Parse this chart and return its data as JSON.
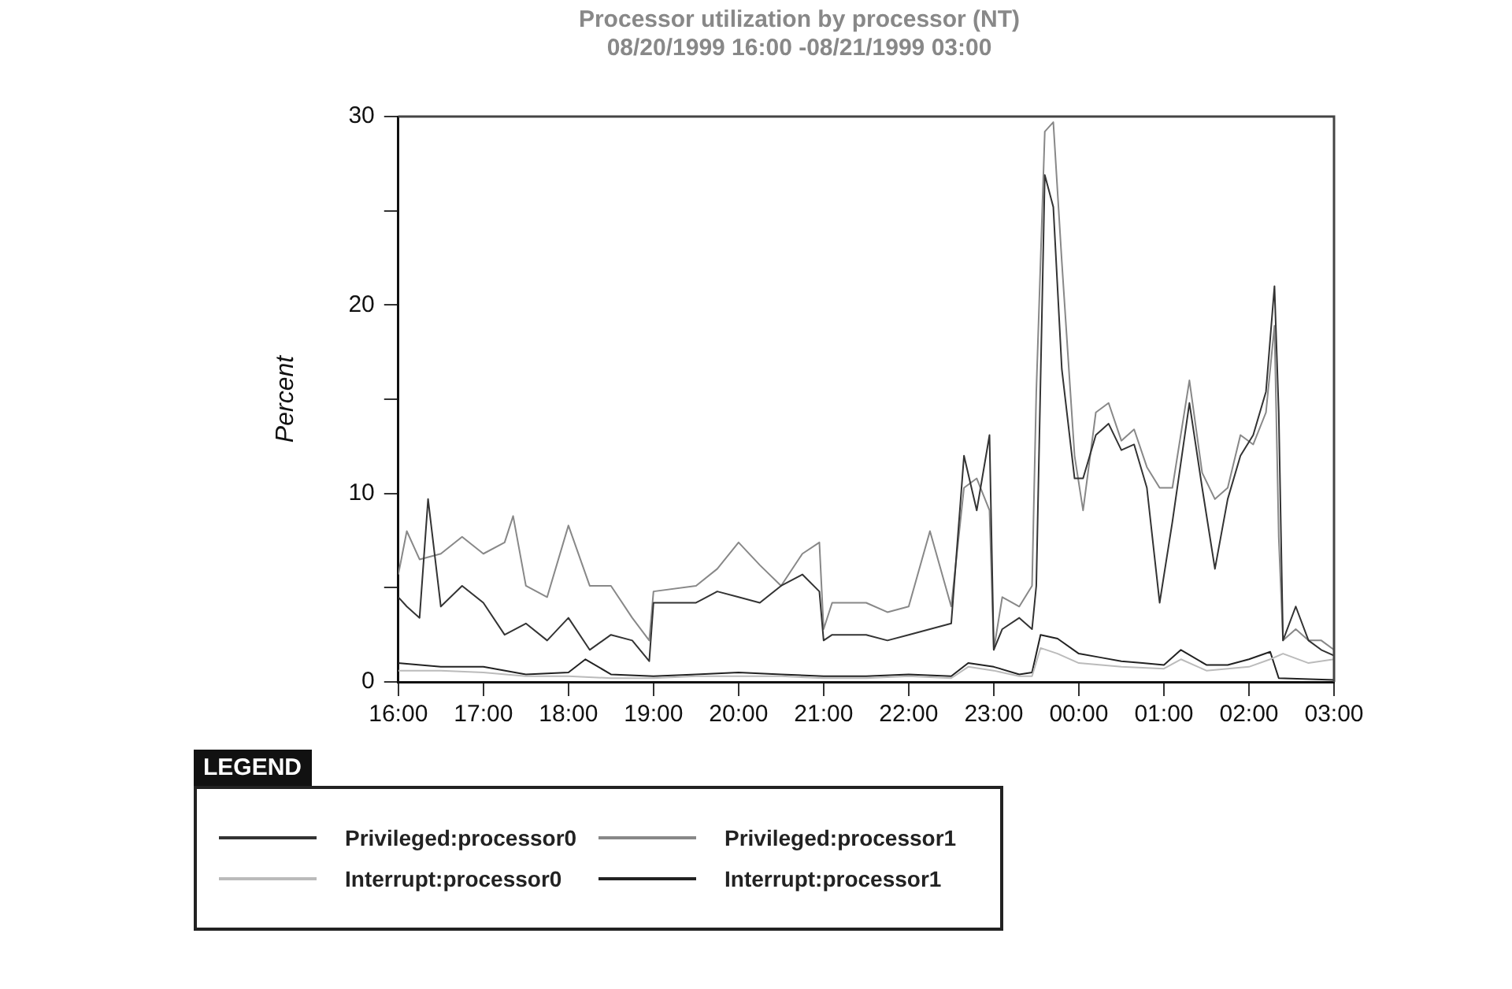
{
  "chart_data": {
    "type": "line",
    "title": "Processor utilization by processor (NT)",
    "subtitle": "08/20/1999 16:00 -08/21/1999 03:00",
    "ylabel": "Percent",
    "legend_title": "LEGEND",
    "legend": "bottom",
    "grid": false,
    "marker": "none",
    "line_style": "solid",
    "xlim": [
      "1999-08-20T16:00",
      "1999-08-21T03:00"
    ],
    "xticks": [
      {
        "value": "1999-08-20T16:00",
        "label": "16:00"
      },
      {
        "value": "1999-08-20T17:00",
        "label": "17:00"
      },
      {
        "value": "1999-08-20T18:00",
        "label": "18:00"
      },
      {
        "value": "1999-08-20T19:00",
        "label": "19:00"
      },
      {
        "value": "1999-08-20T20:00",
        "label": "20:00"
      },
      {
        "value": "1999-08-20T21:00",
        "label": "21:00"
      },
      {
        "value": "1999-08-20T22:00",
        "label": "22:00"
      },
      {
        "value": "1999-08-20T23:00",
        "label": "23:00"
      },
      {
        "value": "1999-08-21T00:00",
        "label": "00:00"
      },
      {
        "value": "1999-08-21T01:00",
        "label": "01:00"
      },
      {
        "value": "1999-08-21T02:00",
        "label": "02:00"
      },
      {
        "value": "1999-08-21T03:00",
        "label": "03:00"
      }
    ],
    "ylim": [
      0,
      30
    ],
    "yticks": [
      0,
      {
        "value": 5,
        "label": null
      },
      10,
      {
        "value": 15,
        "label": null
      },
      20,
      {
        "value": 25,
        "label": null
      },
      30
    ],
    "series": [
      {
        "name": "Privileged:processor0",
        "color": "#333333",
        "x": [
          "1999-08-20T16:00",
          "1999-08-20T16:06",
          "1999-08-20T16:15",
          "1999-08-20T16:21",
          "1999-08-20T16:30",
          "1999-08-20T16:45",
          "1999-08-20T17:00",
          "1999-08-20T17:15",
          "1999-08-20T17:30",
          "1999-08-20T17:45",
          "1999-08-20T18:00",
          "1999-08-20T18:15",
          "1999-08-20T18:30",
          "1999-08-20T18:45",
          "1999-08-20T18:57",
          "1999-08-20T19:00",
          "1999-08-20T19:30",
          "1999-08-20T19:45",
          "1999-08-20T20:00",
          "1999-08-20T20:15",
          "1999-08-20T20:30",
          "1999-08-20T20:45",
          "1999-08-20T20:57",
          "1999-08-20T21:00",
          "1999-08-20T21:06",
          "1999-08-20T21:30",
          "1999-08-20T21:45",
          "1999-08-20T22:00",
          "1999-08-20T22:15",
          "1999-08-20T22:30",
          "1999-08-20T22:39",
          "1999-08-20T22:48",
          "1999-08-20T22:57",
          "1999-08-20T23:00",
          "1999-08-20T23:06",
          "1999-08-20T23:18",
          "1999-08-20T23:27",
          "1999-08-20T23:30",
          "1999-08-20T23:36",
          "1999-08-20T23:42",
          "1999-08-20T23:48",
          "1999-08-20T23:57",
          "1999-08-21T00:03",
          "1999-08-21T00:12",
          "1999-08-21T00:21",
          "1999-08-21T00:30",
          "1999-08-21T00:39",
          "1999-08-21T00:48",
          "1999-08-21T00:57",
          "1999-08-21T01:06",
          "1999-08-21T01:18",
          "1999-08-21T01:27",
          "1999-08-21T01:36",
          "1999-08-21T01:45",
          "1999-08-21T01:54",
          "1999-08-21T02:03",
          "1999-08-21T02:12",
          "1999-08-21T02:18",
          "1999-08-21T02:21",
          "1999-08-21T02:24",
          "1999-08-21T02:33",
          "1999-08-21T02:42",
          "1999-08-21T02:51",
          "1999-08-21T03:00"
        ],
        "values": [
          4.5,
          4.0,
          3.4,
          9.7,
          4.0,
          5.1,
          4.2,
          2.5,
          3.1,
          2.2,
          3.4,
          1.7,
          2.5,
          2.2,
          1.1,
          4.2,
          4.2,
          4.8,
          4.5,
          4.2,
          5.1,
          5.7,
          4.8,
          2.2,
          2.5,
          2.5,
          2.2,
          2.5,
          2.8,
          3.1,
          12.0,
          9.1,
          13.1,
          1.7,
          2.8,
          3.4,
          2.8,
          5.1,
          26.9,
          25.2,
          16.6,
          10.8,
          10.8,
          13.1,
          13.7,
          12.3,
          12.6,
          10.3,
          4.2,
          8.5,
          14.8,
          10.3,
          6.0,
          9.7,
          12.0,
          13.1,
          15.4,
          21.0,
          14.3,
          2.2,
          4.0,
          2.2,
          1.7,
          1.4
        ]
      },
      {
        "name": "Privileged:processor1",
        "color": "#888888",
        "x": [
          "1999-08-20T16:00",
          "1999-08-20T16:06",
          "1999-08-20T16:15",
          "1999-08-20T16:30",
          "1999-08-20T16:45",
          "1999-08-20T17:00",
          "1999-08-20T17:15",
          "1999-08-20T17:21",
          "1999-08-20T17:30",
          "1999-08-20T17:45",
          "1999-08-20T18:00",
          "1999-08-20T18:15",
          "1999-08-20T18:30",
          "1999-08-20T18:45",
          "1999-08-20T18:57",
          "1999-08-20T19:00",
          "1999-08-20T19:30",
          "1999-08-20T19:45",
          "1999-08-20T20:00",
          "1999-08-20T20:15",
          "1999-08-20T20:30",
          "1999-08-20T20:45",
          "1999-08-20T20:57",
          "1999-08-20T21:00",
          "1999-08-20T21:06",
          "1999-08-20T21:30",
          "1999-08-20T21:45",
          "1999-08-20T22:00",
          "1999-08-20T22:15",
          "1999-08-20T22:30",
          "1999-08-20T22:39",
          "1999-08-20T22:48",
          "1999-08-20T22:57",
          "1999-08-20T23:00",
          "1999-08-20T23:06",
          "1999-08-20T23:18",
          "1999-08-20T23:27",
          "1999-08-20T23:30",
          "1999-08-20T23:36",
          "1999-08-20T23:42",
          "1999-08-20T23:48",
          "1999-08-20T23:57",
          "1999-08-21T00:03",
          "1999-08-21T00:12",
          "1999-08-21T00:21",
          "1999-08-21T00:30",
          "1999-08-21T00:39",
          "1999-08-21T00:48",
          "1999-08-21T00:57",
          "1999-08-21T01:06",
          "1999-08-21T01:18",
          "1999-08-21T01:27",
          "1999-08-21T01:36",
          "1999-08-21T01:45",
          "1999-08-21T01:54",
          "1999-08-21T02:03",
          "1999-08-21T02:12",
          "1999-08-21T02:18",
          "1999-08-21T02:21",
          "1999-08-21T02:24",
          "1999-08-21T02:33",
          "1999-08-21T02:42",
          "1999-08-21T02:51",
          "1999-08-21T03:00"
        ],
        "values": [
          5.7,
          8.0,
          6.5,
          6.8,
          7.7,
          6.8,
          7.4,
          8.8,
          5.1,
          4.5,
          8.3,
          5.1,
          5.1,
          3.4,
          2.2,
          4.8,
          5.1,
          6.0,
          7.4,
          6.2,
          5.1,
          6.8,
          7.4,
          2.8,
          4.2,
          4.2,
          3.7,
          4.0,
          8.0,
          4.0,
          10.3,
          10.8,
          9.1,
          1.7,
          4.5,
          4.0,
          5.1,
          15.4,
          29.2,
          29.7,
          22.3,
          12.0,
          9.1,
          14.3,
          14.8,
          12.8,
          13.4,
          11.4,
          10.3,
          10.3,
          16.0,
          11.1,
          9.7,
          10.3,
          13.1,
          12.6,
          14.3,
          18.9,
          7.7,
          2.2,
          2.8,
          2.2,
          2.2,
          1.7
        ]
      },
      {
        "name": "Interrupt:processor0",
        "color": "#bbbbbb",
        "x": [
          "1999-08-20T16:00",
          "1999-08-20T16:30",
          "1999-08-20T17:00",
          "1999-08-20T17:30",
          "1999-08-20T18:00",
          "1999-08-20T18:30",
          "1999-08-20T19:00",
          "1999-08-20T19:30",
          "1999-08-20T20:00",
          "1999-08-20T20:30",
          "1999-08-20T21:00",
          "1999-08-20T21:30",
          "1999-08-20T22:00",
          "1999-08-20T22:30",
          "1999-08-20T22:42",
          "1999-08-20T23:00",
          "1999-08-20T23:18",
          "1999-08-20T23:27",
          "1999-08-20T23:33",
          "1999-08-20T23:45",
          "1999-08-21T00:00",
          "1999-08-21T00:30",
          "1999-08-21T01:00",
          "1999-08-21T01:12",
          "1999-08-21T01:30",
          "1999-08-21T02:00",
          "1999-08-21T02:15",
          "1999-08-21T02:24",
          "1999-08-21T02:42",
          "1999-08-21T03:00"
        ],
        "values": [
          0.6,
          0.6,
          0.5,
          0.3,
          0.3,
          0.2,
          0.2,
          0.3,
          0.3,
          0.3,
          0.2,
          0.2,
          0.3,
          0.2,
          0.8,
          0.6,
          0.3,
          0.3,
          1.8,
          1.5,
          1.0,
          0.8,
          0.7,
          1.2,
          0.6,
          0.8,
          1.2,
          1.5,
          1.0,
          1.2
        ]
      },
      {
        "name": "Interrupt:processor1",
        "color": "#222222",
        "x": [
          "1999-08-20T16:00",
          "1999-08-20T16:30",
          "1999-08-20T17:00",
          "1999-08-20T17:30",
          "1999-08-20T18:00",
          "1999-08-20T18:12",
          "1999-08-20T18:30",
          "1999-08-20T19:00",
          "1999-08-20T19:30",
          "1999-08-20T20:00",
          "1999-08-20T20:30",
          "1999-08-20T21:00",
          "1999-08-20T21:30",
          "1999-08-20T22:00",
          "1999-08-20T22:30",
          "1999-08-20T22:42",
          "1999-08-20T23:00",
          "1999-08-20T23:18",
          "1999-08-20T23:27",
          "1999-08-20T23:33",
          "1999-08-20T23:45",
          "1999-08-21T00:00",
          "1999-08-21T00:15",
          "1999-08-21T00:30",
          "1999-08-21T00:45",
          "1999-08-21T01:00",
          "1999-08-21T01:12",
          "1999-08-21T01:30",
          "1999-08-21T01:45",
          "1999-08-21T02:00",
          "1999-08-21T02:15",
          "1999-08-21T02:21",
          "1999-08-21T03:00"
        ],
        "values": [
          1.0,
          0.8,
          0.8,
          0.4,
          0.5,
          1.2,
          0.4,
          0.3,
          0.4,
          0.5,
          0.4,
          0.3,
          0.3,
          0.4,
          0.3,
          1.0,
          0.8,
          0.4,
          0.5,
          2.5,
          2.3,
          1.5,
          1.3,
          1.1,
          1.0,
          0.9,
          1.7,
          0.9,
          0.9,
          1.2,
          1.6,
          0.2,
          0.1
        ]
      }
    ]
  }
}
